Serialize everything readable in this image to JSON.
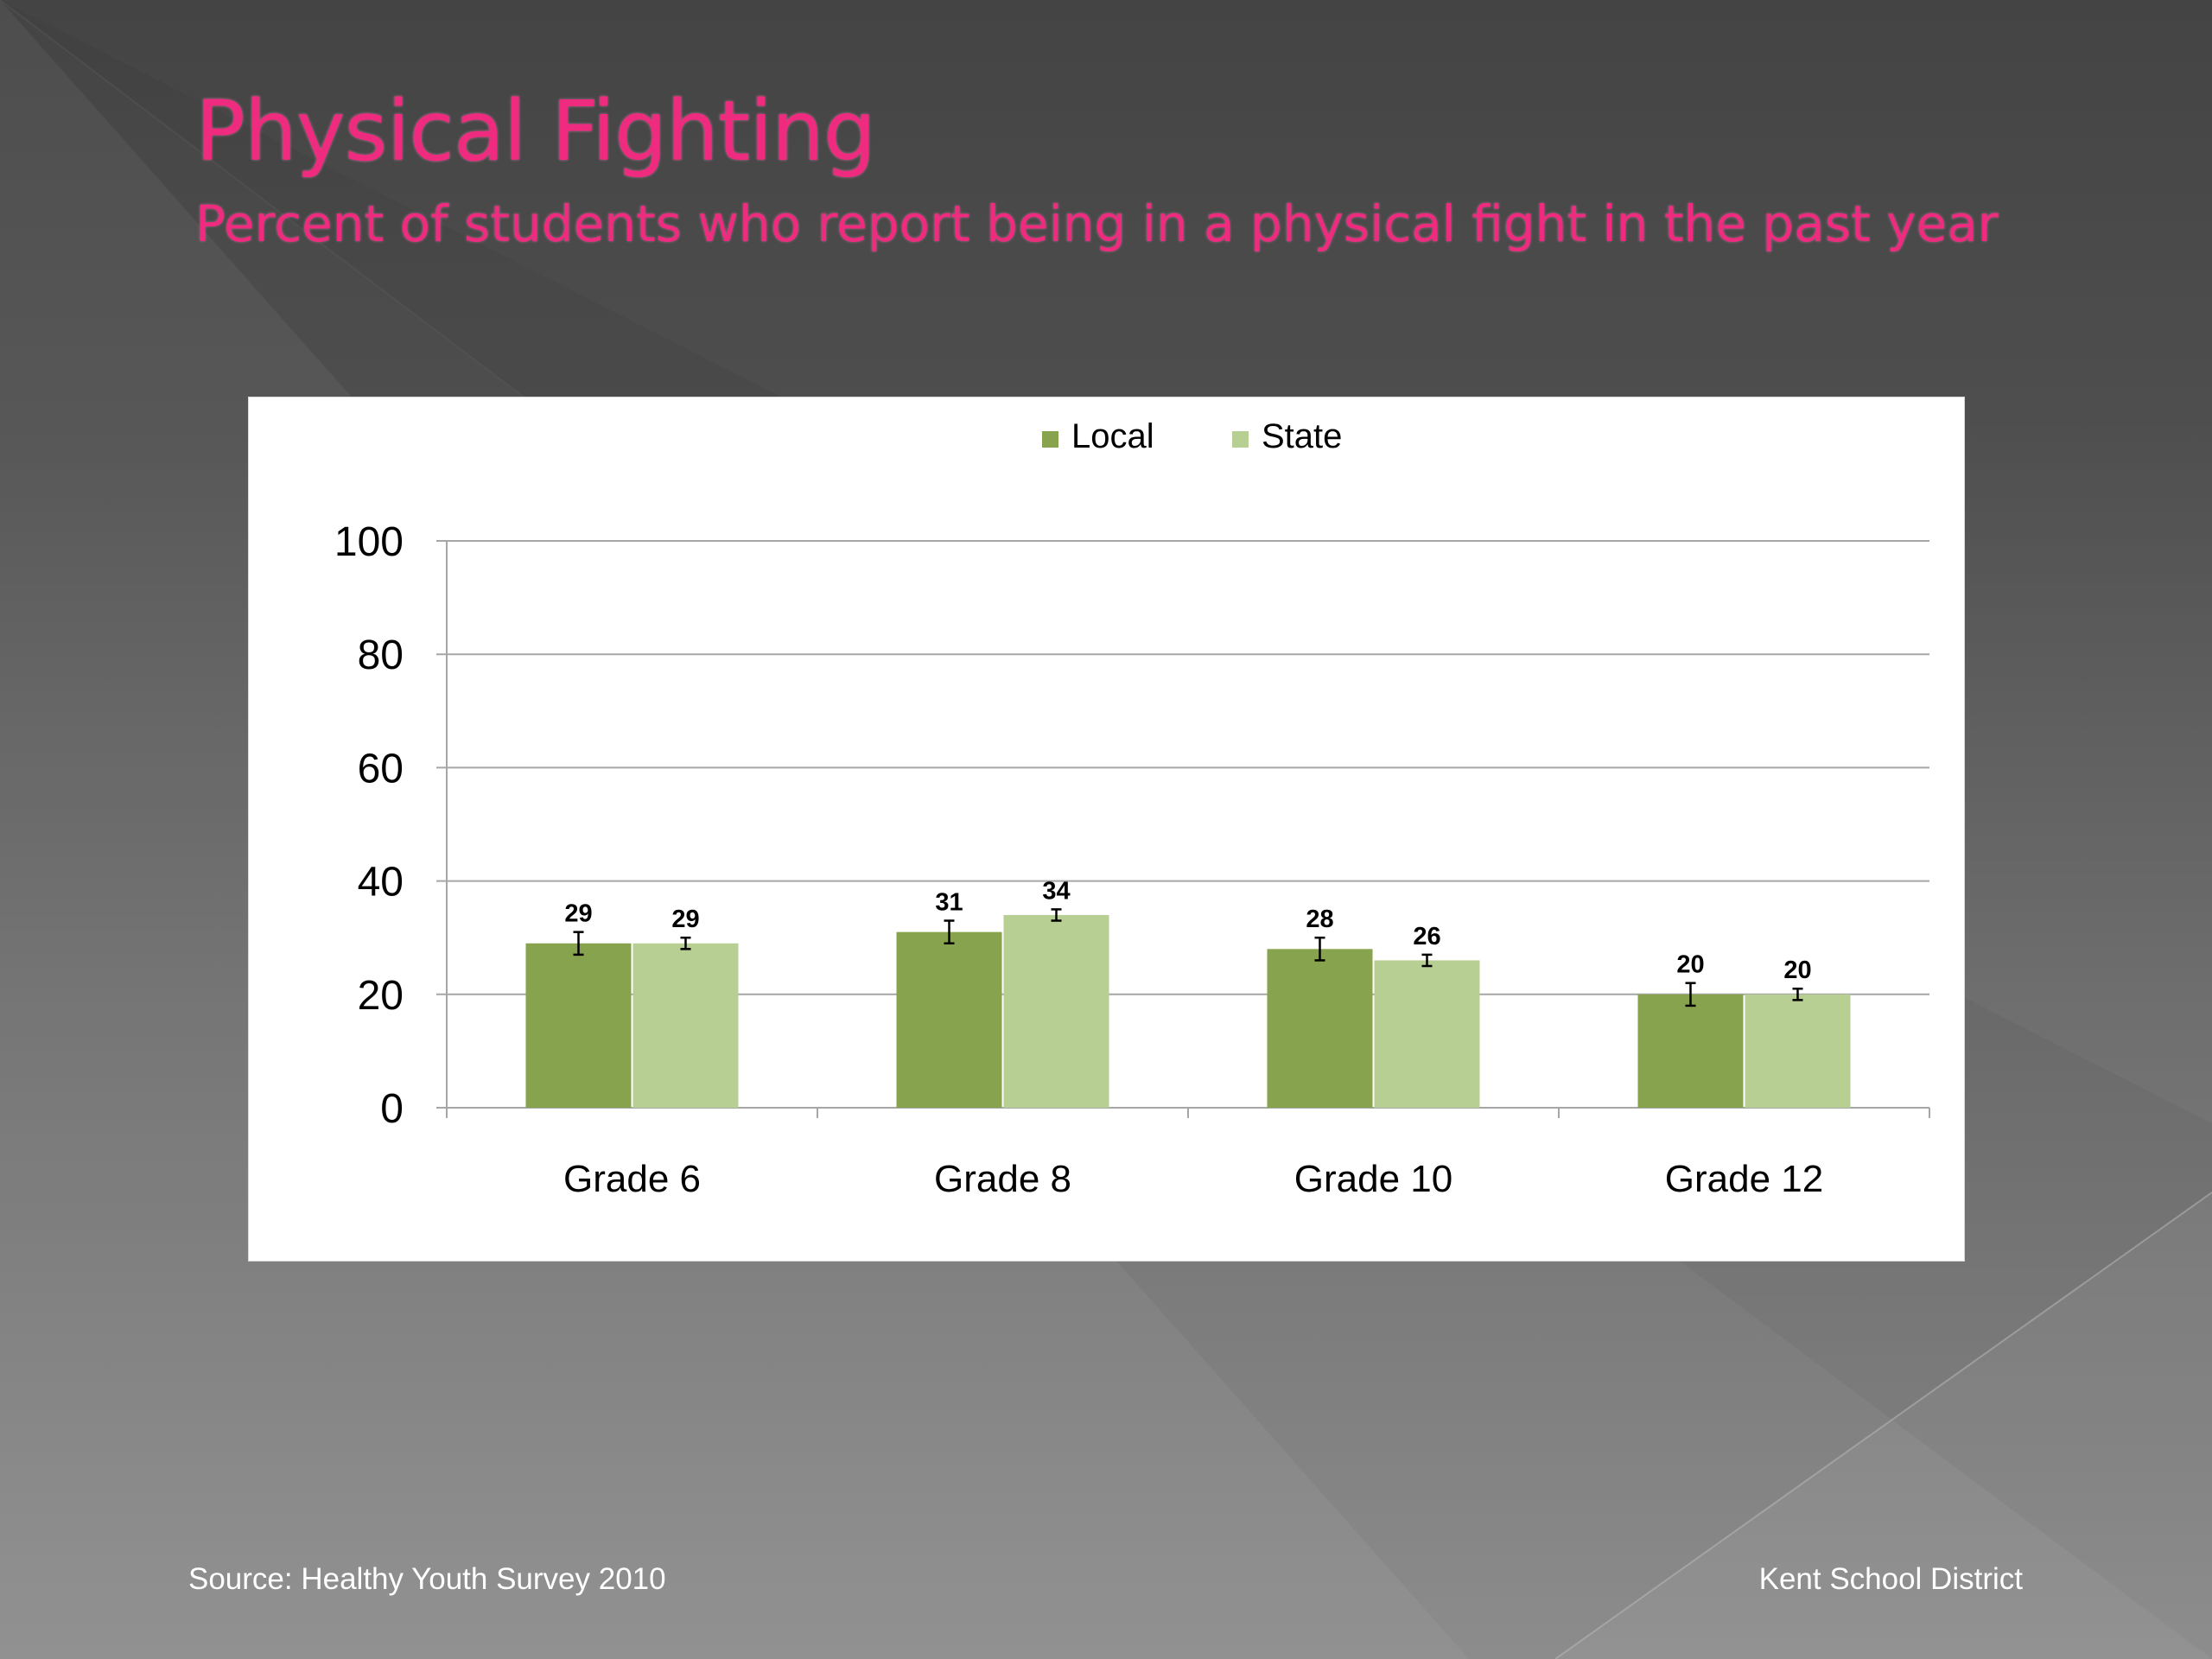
{
  "slide": {
    "title": "Physical Fighting",
    "subtitle": "Percent of students who report being in a physical fight in the past year",
    "source": "Source: Healthy Youth Survey 2010",
    "organization": "Kent School District"
  },
  "colors": {
    "title": "#ee2b7e",
    "local": "#88a34e",
    "state": "#b8cf93"
  },
  "chart_data": {
    "type": "bar",
    "categories": [
      "Grade 6",
      "Grade 8",
      "Grade 10",
      "Grade 12"
    ],
    "series": [
      {
        "name": "Local",
        "values": [
          29,
          31,
          28,
          20
        ],
        "error_low": [
          27,
          29,
          26,
          18
        ],
        "error_high": [
          31,
          33,
          30,
          22
        ]
      },
      {
        "name": "State",
        "values": [
          29,
          34,
          26,
          20
        ],
        "error_low": [
          28,
          33,
          25,
          19
        ],
        "error_high": [
          30,
          35,
          27,
          21
        ]
      }
    ],
    "data_labels": [
      [
        "29",
        "31",
        "28",
        "20"
      ],
      [
        "29",
        "34",
        "26",
        "20"
      ]
    ],
    "ylim": [
      0,
      100
    ],
    "yticks": [
      0,
      20,
      40,
      60,
      80,
      100
    ],
    "grid": true,
    "legend": "top-center"
  }
}
